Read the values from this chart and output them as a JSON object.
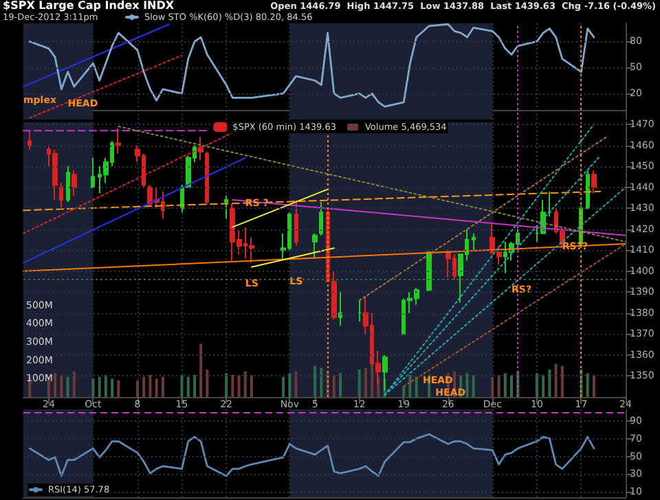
{
  "chart_data": [
    {
      "type": "line",
      "title": "$SPX Large Cap Index INDX",
      "subtitle": "19-Dec-2012 3:11pm",
      "annotations": [
        "Open 1446.79  High 1447.75  Low 1437.88  Last 1439.63  Chg -7.16 (-0.49%)",
        {
          "text": "mplex",
          "x": "2012-09-20",
          "y": 12
        },
        {
          "text": "HEAD",
          "x": "2012-09-27",
          "y": 8
        }
      ],
      "x": [
        "2012-09-21",
        "2012-09-24",
        "2012-09-25",
        "2012-09-26",
        "2012-09-27",
        "2012-09-28",
        "2012-10-01",
        "2012-10-02",
        "2012-10-03",
        "2012-10-04",
        "2012-10-05",
        "2012-10-08",
        "2012-10-09",
        "2012-10-10",
        "2012-10-11",
        "2012-10-12",
        "2012-10-15",
        "2012-10-16",
        "2012-10-17",
        "2012-10-18",
        "2012-10-19",
        "2012-10-22",
        "2012-10-23",
        "2012-10-24",
        "2012-10-25",
        "2012-10-26",
        "2012-10-31",
        "2012-11-01",
        "2012-11-02",
        "2012-11-05",
        "2012-11-06",
        "2012-11-07",
        "2012-11-08",
        "2012-11-09",
        "2012-11-12",
        "2012-11-13",
        "2012-11-14",
        "2012-11-15",
        "2012-11-16",
        "2012-11-19",
        "2012-11-20",
        "2012-11-21",
        "2012-11-23",
        "2012-11-26",
        "2012-11-27",
        "2012-11-28",
        "2012-11-29",
        "2012-11-30",
        "2012-12-03",
        "2012-12-04",
        "2012-12-05",
        "2012-12-06",
        "2012-12-07",
        "2012-12-10",
        "2012-12-11",
        "2012-12-12",
        "2012-12-13",
        "2012-12-14",
        "2012-12-17",
        "2012-12-18",
        "2012-12-19"
      ],
      "series": [
        {
          "name": "Slow STO %K(60) %D(3) 80.20, 84.56",
          "color": "#7fa8cc",
          "values": [
            80,
            72,
            62,
            25,
            45,
            28,
            55,
            35,
            55,
            75,
            90,
            70,
            45,
            25,
            12,
            25,
            20,
            60,
            80,
            85,
            65,
            30,
            15,
            15,
            15,
            15,
            20,
            30,
            40,
            35,
            30,
            90,
            20,
            15,
            20,
            15,
            20,
            10,
            5,
            10,
            55,
            85,
            98,
            100,
            92,
            90,
            85,
            96,
            92,
            85,
            72,
            65,
            75,
            80,
            90,
            95,
            85,
            60,
            45,
            95,
            85
          ]
        },
        {
          "type": "line",
          "x": [
            "2012-09-20",
            "2012-10-13"
          ],
          "values": [
            28,
            100
          ],
          "color": "#2233ee",
          "line_style": "solid"
        },
        {
          "type": "line",
          "x": [
            "2012-09-21",
            "2012-10-15"
          ],
          "values": [
            -8,
            64
          ],
          "color": "#dd2222",
          "line_style": "dotted"
        }
      ],
      "xlim": [
        "2012-09-20",
        "2012-12-24"
      ],
      "xticks": [
        {
          "value": "2012-09-24",
          "label": null
        },
        {
          "value": "2012-10-01",
          "label": null
        },
        {
          "value": "2012-10-08",
          "label": null
        },
        {
          "value": "2012-10-15",
          "label": null
        },
        {
          "value": "2012-10-22",
          "label": null
        },
        {
          "value": "2012-11-01",
          "label": null
        },
        {
          "value": "2012-11-05",
          "label": null
        },
        {
          "value": "2012-11-12",
          "label": null
        },
        {
          "value": "2012-11-19",
          "label": null
        },
        {
          "value": "2012-11-26",
          "label": null
        },
        {
          "value": "2012-12-03",
          "label": null
        },
        {
          "value": "2012-12-10",
          "label": null
        },
        {
          "value": "2012-12-17",
          "label": null
        },
        {
          "value": "2012-12-24",
          "label": null
        }
      ],
      "ylim": [
        -10,
        101
      ],
      "yticks": [
        20,
        50,
        80
      ],
      "tick_labels": "y",
      "grid": true,
      "legend": "top left",
      "marker": "none",
      "ref_lines": [
        {
          "axis": "x",
          "value": "2012-12-07",
          "color": "#cc33cc",
          "line_style": "dotted"
        },
        {
          "axis": "x",
          "value": "2012-12-17",
          "color": "#ff8800",
          "line_style": "dotted"
        }
      ],
      "bands": [
        {
          "axis": "x",
          "from": "2012-09-20",
          "to": "2012-10-01",
          "color": "#1b2035"
        },
        {
          "axis": "x",
          "from": "2012-11-01",
          "to": "2012-12-03",
          "color": "#1b2035"
        }
      ]
    },
    {
      "type": "candlestick",
      "annotations": [
        {
          "text": "RS ?",
          "x": "2012-10-25",
          "y": 1432.5
        },
        {
          "text": "LS",
          "x": "2012-10-25",
          "y": 1394
        },
        {
          "text": "LS",
          "x": "2012-11-01",
          "y": 1395
        },
        {
          "text": "RS?",
          "x": "2012-12-06",
          "y": 1391
        },
        {
          "text": "RS??",
          "x": "2012-12-14",
          "y": 1411.6
        },
        {
          "text": "HEAD",
          "x": "2012-11-22",
          "y": 1348
        },
        {
          "text": "HEAD",
          "x": "2012-11-24",
          "y": 1342
        }
      ],
      "x": [
        "2012-09-21",
        "2012-09-24",
        "2012-09-25",
        "2012-09-26",
        "2012-09-27",
        "2012-09-28",
        "2012-10-01",
        "2012-10-02",
        "2012-10-03",
        "2012-10-04",
        "2012-10-05",
        "2012-10-08",
        "2012-10-09",
        "2012-10-10",
        "2012-10-11",
        "2012-10-12",
        "2012-10-15",
        "2012-10-16",
        "2012-10-17",
        "2012-10-18",
        "2012-10-19",
        "2012-10-22",
        "2012-10-23",
        "2012-10-24",
        "2012-10-25",
        "2012-10-26",
        "2012-10-31",
        "2012-11-01",
        "2012-11-02",
        "2012-11-05",
        "2012-11-06",
        "2012-11-07",
        "2012-11-08",
        "2012-11-09",
        "2012-11-12",
        "2012-11-13",
        "2012-11-14",
        "2012-11-15",
        "2012-11-16",
        "2012-11-19",
        "2012-11-20",
        "2012-11-21",
        "2012-11-23",
        "2012-11-26",
        "2012-11-27",
        "2012-11-28",
        "2012-11-29",
        "2012-11-30",
        "2012-12-03",
        "2012-12-04",
        "2012-12-05",
        "2012-12-06",
        "2012-12-07",
        "2012-12-10",
        "2012-12-11",
        "2012-12-12",
        "2012-12-13",
        "2012-12-14",
        "2012-12-17",
        "2012-12-18",
        "2012-12-19"
      ],
      "series": [
        {
          "name": "$SPX (60 min) 1439.63",
          "ohlc": [
            [
              1462,
              1467,
              1458,
              1460
            ],
            [
              1458,
              1460,
              1450,
              1456
            ],
            [
              1456,
              1458,
              1434,
              1441
            ],
            [
              1440,
              1442,
              1430,
              1434
            ],
            [
              1434,
              1450,
              1433,
              1447
            ],
            [
              1446,
              1448,
              1436,
              1440
            ],
            [
              1440,
              1454,
              1440,
              1445
            ],
            [
              1445,
              1450,
              1437,
              1446
            ],
            [
              1446,
              1454,
              1442,
              1452
            ],
            [
              1452,
              1462,
              1450,
              1461
            ],
            [
              1461,
              1468,
              1456,
              1460
            ],
            [
              1458,
              1460,
              1452,
              1455
            ],
            [
              1455,
              1456,
              1440,
              1441
            ],
            [
              1440,
              1441,
              1431,
              1432
            ],
            [
              1434,
              1440,
              1430,
              1433
            ],
            [
              1433,
              1438,
              1425,
              1429
            ],
            [
              1430,
              1441,
              1428,
              1440
            ],
            [
              1440,
              1455,
              1440,
              1454
            ],
            [
              1454,
              1460,
              1452,
              1459
            ],
            [
              1459,
              1464,
              1453,
              1457
            ],
            [
              1456,
              1457,
              1432,
              1433
            ],
            [
              1433,
              1436,
              1425,
              1434
            ],
            [
              1430,
              1432,
              1405,
              1414
            ],
            [
              1415,
              1420,
              1408,
              1412
            ],
            [
              1413,
              1421,
              1406,
              1412
            ],
            [
              1412,
              1416,
              1404,
              1411
            ],
            [
              1410,
              1418,
              1406,
              1411
            ],
            [
              1411,
              1428,
              1410,
              1427
            ],
            [
              1427,
              1434,
              1412,
              1414
            ],
            [
              1414,
              1418,
              1406,
              1417
            ],
            [
              1418,
              1433,
              1417,
              1428
            ],
            [
              1428,
              1430,
              1395,
              1395
            ],
            [
              1395,
              1400,
              1377,
              1378
            ],
            [
              1378,
              1390,
              1374,
              1380
            ],
            [
              1380,
              1386,
              1376,
              1380
            ],
            [
              1380,
              1388,
              1370,
              1374
            ],
            [
              1374,
              1380,
              1355,
              1356
            ],
            [
              1356,
              1362,
              1346,
              1352
            ],
            [
              1352,
              1360,
              1343,
              1359
            ],
            [
              1370,
              1387,
              1370,
              1386
            ],
            [
              1386,
              1390,
              1380,
              1387
            ],
            [
              1387,
              1392,
              1384,
              1391
            ],
            [
              1391,
              1410,
              1390,
              1409
            ],
            [
              1409,
              1410,
              1397,
              1406
            ],
            [
              1406,
              1408,
              1396,
              1398
            ],
            [
              1398,
              1408,
              1385,
              1408
            ],
            [
              1408,
              1420,
              1405,
              1415
            ],
            [
              1415,
              1418,
              1410,
              1416
            ],
            [
              1416,
              1423,
              1408,
              1409
            ],
            [
              1409,
              1412,
              1403,
              1407
            ],
            [
              1407,
              1414,
              1399,
              1409
            ],
            [
              1409,
              1414,
              1405,
              1413
            ],
            [
              1413,
              1420,
              1410,
              1418
            ],
            [
              1418,
              1421,
              1414,
              1418
            ],
            [
              1418,
              1434,
              1418,
              1428
            ],
            [
              1428,
              1438,
              1426,
              1428
            ],
            [
              1428,
              1430,
              1418,
              1419
            ],
            [
              1419,
              1421,
              1411,
              1413
            ],
            [
              1413,
              1431,
              1412,
              1430
            ],
            [
              1430,
              1448,
              1430,
              1446
            ],
            [
              1446,
              1448,
              1437,
              1440
            ]
          ],
          "colors": [
            "#dd2222",
            "#dd2222",
            "#dd2222",
            "#dd2222",
            "#22cc22",
            "#dd2222",
            "#22cc22",
            "#22cc22",
            "#22cc22",
            "#22cc22",
            "#dd2222",
            "#dd2222",
            "#dd2222",
            "#dd2222",
            "#dd2222",
            "#dd2222",
            "#22cc22",
            "#22cc22",
            "#22cc22",
            "#dd2222",
            "#dd2222",
            "#22cc22",
            "#dd2222",
            "#dd2222",
            "#dd2222",
            "#dd2222",
            "#22cc22",
            "#22cc22",
            "#dd2222",
            "#22cc22",
            "#22cc22",
            "#dd2222",
            "#dd2222",
            "#22cc22",
            "#22cc22",
            "#dd2222",
            "#dd2222",
            "#dd2222",
            "#22cc22",
            "#22cc22",
            "#22cc22",
            "#22cc22",
            "#22cc22",
            "#dd2222",
            "#dd2222",
            "#22cc22",
            "#22cc22",
            "#22cc22",
            "#dd2222",
            "#dd2222",
            "#22cc22",
            "#22cc22",
            "#22cc22",
            "#22cc22",
            "#22cc22",
            "#22cc22",
            "#dd2222",
            "#dd2222",
            "#22cc22",
            "#22cc22",
            "#dd2222"
          ]
        },
        {
          "name": "Volume 5,469,534",
          "type": "bar",
          "axis": "y2",
          "values": [
            110,
            120,
            130,
            120,
            110,
            140,
            100,
            110,
            120,
            100,
            90,
            90,
            110,
            120,
            100,
            110,
            120,
            110,
            120,
            290,
            150,
            130,
            120,
            120,
            140,
            120,
            110,
            130,
            140,
            170,
            160,
            140,
            120,
            130,
            150,
            160,
            180,
            110,
            100,
            60,
            120,
            110,
            120,
            130,
            140,
            120,
            130,
            120,
            110,
            120,
            130,
            120,
            140,
            130,
            120,
            150,
            180,
            170,
            150,
            130,
            120
          ],
          "colors": [
            "#6b3a3a",
            "#6b3a3a",
            "#6b3a3a",
            "#6b3a3a",
            "#2d6b4a",
            "#6b3a3a",
            "#2d6b4a",
            "#2d6b4a",
            "#2d6b4a",
            "#2d6b4a",
            "#6b3a3a",
            "#6b3a3a",
            "#6b3a3a",
            "#6b3a3a",
            "#6b3a3a",
            "#6b3a3a",
            "#2d6b4a",
            "#2d6b4a",
            "#2d6b4a",
            "#6b3a3a",
            "#6b3a3a",
            "#2d6b4a",
            "#6b3a3a",
            "#6b3a3a",
            "#6b3a3a",
            "#6b3a3a",
            "#2d6b4a",
            "#2d6b4a",
            "#6b3a3a",
            "#2d6b4a",
            "#2d6b4a",
            "#6b3a3a",
            "#6b3a3a",
            "#2d6b4a",
            "#2d6b4a",
            "#6b3a3a",
            "#6b3a3a",
            "#6b3a3a",
            "#2d6b4a",
            "#2d6b4a",
            "#2d6b4a",
            "#2d6b4a",
            "#2d6b4a",
            "#6b3a3a",
            "#6b3a3a",
            "#2d6b4a",
            "#2d6b4a",
            "#2d6b4a",
            "#6b3a3a",
            "#6b3a3a",
            "#2d6b4a",
            "#2d6b4a",
            "#2d6b4a",
            "#2d6b4a",
            "#2d6b4a",
            "#2d6b4a",
            "#6b3a3a",
            "#6b3a3a",
            "#2d6b4a",
            "#2d6b4a",
            "#6b3a3a"
          ]
        },
        {
          "type": "line",
          "x": [
            "2012-09-20",
            "2012-12-20"
          ],
          "values": [
            1429,
            1438
          ],
          "color": "#ff9900",
          "line_style": "dashed"
        },
        {
          "type": "line",
          "x": [
            "2012-09-20",
            "2012-12-24"
          ],
          "values": [
            1400,
            1413
          ],
          "color": "#ff7700",
          "line_style": "solid"
        },
        {
          "type": "line",
          "x": [
            "2012-10-23",
            "2012-12-24"
          ],
          "values": [
            1434,
            1417
          ],
          "color": "#cc33cc",
          "line_style": "solid"
        },
        {
          "type": "line",
          "x": [
            "2012-09-20",
            "2012-10-19"
          ],
          "values": [
            1467,
            1467
          ],
          "color": "#cc33cc",
          "line_style": "dashed"
        },
        {
          "type": "line",
          "x": [
            "2012-09-20",
            "2012-10-25"
          ],
          "values": [
            1404,
            1454
          ],
          "color": "#2233ee",
          "line_style": "solid"
        },
        {
          "type": "line",
          "x": [
            "2012-09-20",
            "2012-10-23"
          ],
          "values": [
            1418,
            1466
          ],
          "color": "#dd2222",
          "line_style": "dotted"
        },
        {
          "type": "line",
          "x": [
            "2012-10-23",
            "2012-11-07"
          ],
          "values": [
            1421,
            1439
          ],
          "color": "#eeee33",
          "line_style": "solid"
        },
        {
          "type": "line",
          "x": [
            "2012-10-26",
            "2012-11-08"
          ],
          "values": [
            1402,
            1411
          ],
          "color": "#eeee33",
          "line_style": "solid"
        },
        {
          "type": "line",
          "x": [
            "2012-11-16",
            "2012-12-19"
          ],
          "values": [
            1341,
            1470
          ],
          "color": "#22aaaa",
          "line_style": "dotted"
        },
        {
          "type": "line",
          "x": [
            "2012-11-16",
            "2012-12-20"
          ],
          "values": [
            1341,
            1455
          ],
          "color": "#22aaaa",
          "line_style": "dotted"
        },
        {
          "type": "line",
          "x": [
            "2012-11-16",
            "2012-12-24"
          ],
          "values": [
            1341,
            1440
          ],
          "color": "#22aaaa",
          "line_style": "dotted"
        },
        {
          "type": "line",
          "x": [
            "2012-11-12",
            "2012-12-21"
          ],
          "values": [
            1386,
            1464
          ],
          "color": "#aa7733",
          "line_style": "dotted"
        },
        {
          "type": "line",
          "x": [
            "2012-11-19",
            "2012-12-24"
          ],
          "values": [
            1345,
            1413
          ],
          "color": "#aa5522",
          "line_style": "dotted"
        },
        {
          "type": "line",
          "x": [
            "2012-10-05",
            "2012-12-24"
          ],
          "values": [
            1469,
            1414
          ],
          "color": "#888833",
          "line_style": "dotted"
        }
      ],
      "xlim": [
        "2012-09-20",
        "2012-12-24"
      ],
      "xticks": [
        {
          "value": "2012-09-24",
          "label": "24"
        },
        {
          "value": "2012-10-01",
          "label": "Oct"
        },
        {
          "value": "2012-10-08",
          "label": "8"
        },
        {
          "value": "2012-10-15",
          "label": "15"
        },
        {
          "value": "2012-10-22",
          "label": "22"
        },
        {
          "value": "2012-11-01",
          "label": "Nov"
        },
        {
          "value": "2012-11-05",
          "label": "5"
        },
        {
          "value": "2012-11-12",
          "label": "12"
        },
        {
          "value": "2012-11-19",
          "label": "19"
        },
        {
          "value": "2012-11-26",
          "label": "26"
        },
        {
          "value": "2012-12-03",
          "label": "Dec"
        },
        {
          "value": "2012-12-10",
          "label": "10"
        },
        {
          "value": "2012-12-17",
          "label": "17"
        },
        {
          "value": "2012-12-24",
          "label": "24"
        }
      ],
      "ylim": [
        1340,
        1471
      ],
      "yticks": [
        1350,
        1360,
        1370,
        1380,
        1390,
        1400,
        1410,
        1420,
        1430,
        1440,
        1450,
        1460,
        1470
      ],
      "y2lim": [
        0,
        1500
      ],
      "y2ticks": [
        {
          "value": 100,
          "label": "100M"
        },
        {
          "value": 200,
          "label": "200M"
        },
        {
          "value": 300,
          "label": "300M"
        },
        {
          "value": 400,
          "label": "400M"
        },
        {
          "value": 500,
          "label": "500M"
        }
      ],
      "grid": true,
      "legend": "top",
      "marker": "none",
      "ref_lines": [
        {
          "axis": "y",
          "value": 1396,
          "color": "#3a6a3a",
          "line_style": "dotted"
        },
        {
          "axis": "x",
          "value": "2012-11-07",
          "color": "#ff8800",
          "line_style": "dotted"
        },
        {
          "axis": "x",
          "value": "2012-12-07",
          "color": "#cc33cc",
          "line_style": "dotted"
        },
        {
          "axis": "x",
          "value": "2012-12-17",
          "color": "#ff8800",
          "line_style": "dotted"
        }
      ],
      "bands": [
        {
          "axis": "x",
          "from": "2012-09-20",
          "to": "2012-10-01",
          "color": "#1b2035"
        },
        {
          "axis": "x",
          "from": "2012-11-01",
          "to": "2012-12-03",
          "color": "#1b2035"
        }
      ]
    },
    {
      "type": "line",
      "x": [
        "2012-09-21",
        "2012-09-24",
        "2012-09-25",
        "2012-09-26",
        "2012-09-27",
        "2012-09-28",
        "2012-10-01",
        "2012-10-02",
        "2012-10-03",
        "2012-10-04",
        "2012-10-05",
        "2012-10-08",
        "2012-10-09",
        "2012-10-10",
        "2012-10-11",
        "2012-10-12",
        "2012-10-15",
        "2012-10-16",
        "2012-10-17",
        "2012-10-18",
        "2012-10-19",
        "2012-10-22",
        "2012-10-23",
        "2012-10-24",
        "2012-10-25",
        "2012-10-26",
        "2012-10-31",
        "2012-11-01",
        "2012-11-02",
        "2012-11-05",
        "2012-11-06",
        "2012-11-07",
        "2012-11-08",
        "2012-11-09",
        "2012-11-12",
        "2012-11-13",
        "2012-11-14",
        "2012-11-15",
        "2012-11-16",
        "2012-11-19",
        "2012-11-20",
        "2012-11-21",
        "2012-11-23",
        "2012-11-26",
        "2012-11-27",
        "2012-11-28",
        "2012-11-29",
        "2012-11-30",
        "2012-12-03",
        "2012-12-04",
        "2012-12-05",
        "2012-12-06",
        "2012-12-07",
        "2012-12-10",
        "2012-12-11",
        "2012-12-12",
        "2012-12-13",
        "2012-12-14",
        "2012-12-17",
        "2012-12-18",
        "2012-12-19"
      ],
      "series": [
        {
          "name": "RSI(14) 57.78",
          "color": "#5b8ab5",
          "values": [
            59,
            46,
            49,
            28,
            46,
            46,
            59,
            49,
            57,
            67,
            67,
            54,
            44,
            31,
            36,
            39,
            36,
            67,
            72,
            67,
            39,
            28,
            36,
            36,
            39,
            41,
            49,
            64,
            59,
            52,
            57,
            62,
            33,
            31,
            36,
            39,
            33,
            28,
            44,
            66,
            66,
            70,
            75,
            64,
            67,
            67,
            64,
            59,
            57,
            41,
            52,
            54,
            59,
            67,
            72,
            70,
            41,
            36,
            59,
            72,
            59
          ]
        }
      ],
      "xlim": [
        "2012-09-20",
        "2012-12-24"
      ],
      "xticks": [
        {
          "value": "2012-09-24",
          "label": null
        },
        {
          "value": "2012-10-01",
          "label": null
        },
        {
          "value": "2012-10-08",
          "label": null
        },
        {
          "value": "2012-10-15",
          "label": null
        },
        {
          "value": "2012-10-22",
          "label": null
        },
        {
          "value": "2012-11-01",
          "label": null
        },
        {
          "value": "2012-11-05",
          "label": null
        },
        {
          "value": "2012-11-12",
          "label": null
        },
        {
          "value": "2012-11-19",
          "label": null
        },
        {
          "value": "2012-11-26",
          "label": null
        },
        {
          "value": "2012-12-03",
          "label": null
        },
        {
          "value": "2012-12-10",
          "label": null
        },
        {
          "value": "2012-12-17",
          "label": null
        },
        {
          "value": "2012-12-24",
          "label": null
        }
      ],
      "ylim": [
        4,
        103
      ],
      "yticks": [
        10,
        30,
        50,
        70,
        90
      ],
      "tick_labels": "y",
      "grid": true,
      "legend": "bottom left",
      "marker": "none",
      "ref_lines": [
        {
          "axis": "y",
          "value": 99,
          "color": "#cc33cc",
          "line_style": "dashed"
        }
      ],
      "bands": [
        {
          "axis": "x",
          "from": "2012-09-20",
          "to": "2012-10-01",
          "color": "#1b2035"
        },
        {
          "axis": "x",
          "from": "2012-11-01",
          "to": "2012-12-03",
          "color": "#1b2035"
        }
      ]
    }
  ]
}
